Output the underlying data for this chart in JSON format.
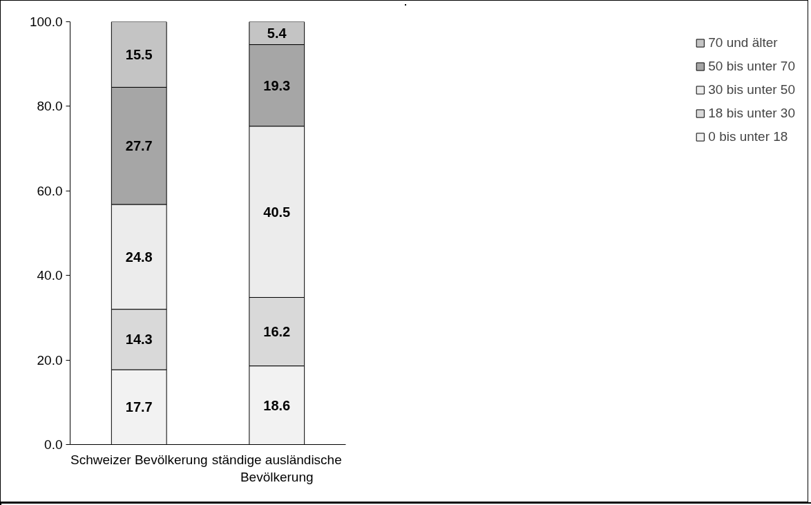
{
  "chart_data": {
    "type": "bar",
    "stacked": true,
    "categories": [
      "Schweizer Bevölkerung",
      "ständige ausländische\nBevölkerung"
    ],
    "series": [
      {
        "name": "0 bis unter 18",
        "color": "#f2f2f2",
        "values": [
          17.7,
          18.6
        ]
      },
      {
        "name": "18 bis unter 30",
        "color": "#d9d9d9",
        "values": [
          14.3,
          16.2
        ]
      },
      {
        "name": "30 bis unter 50",
        "color": "#ececec",
        "values": [
          24.8,
          40.5
        ]
      },
      {
        "name": "50 bis unter 70",
        "color": "#a6a6a6",
        "values": [
          27.7,
          19.3
        ]
      },
      {
        "name": "70 und älter",
        "color": "#c4c4c4",
        "values": [
          15.5,
          5.4
        ]
      }
    ],
    "ylim": [
      0,
      100
    ],
    "yticks": [
      {
        "value": 0,
        "label": "0.0"
      },
      {
        "value": 20,
        "label": "20.0"
      },
      {
        "value": 40,
        "label": "40.0"
      },
      {
        "value": 60,
        "label": "60.0"
      },
      {
        "value": 80,
        "label": "80.0"
      },
      {
        "value": 100,
        "label": "100.0"
      }
    ],
    "data_labels": true,
    "grid": false,
    "legend": "right"
  }
}
